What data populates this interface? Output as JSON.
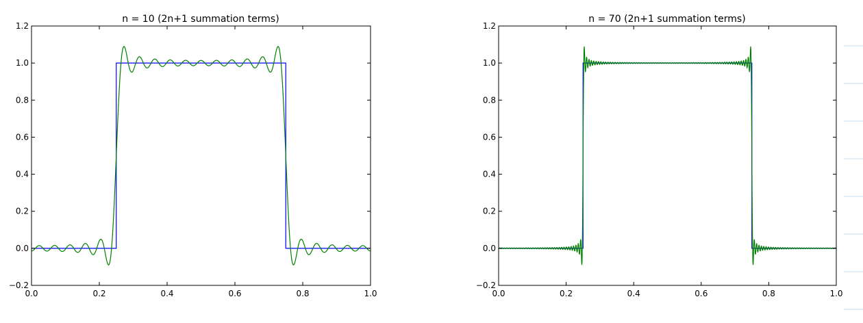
{
  "chart_data": [
    {
      "type": "line",
      "title": "n = 10 (2n+1 summation terms)",
      "xlabel": "",
      "ylabel": "",
      "xlim": [
        0.0,
        1.0
      ],
      "ylim": [
        -0.2,
        1.2
      ],
      "x_ticks": [
        "0.0",
        "0.2",
        "0.4",
        "0.6",
        "0.8",
        "1.0"
      ],
      "y_ticks": [
        "−0.2",
        "0.0",
        "0.2",
        "0.4",
        "0.6",
        "0.8",
        "1.0",
        "1.2"
      ],
      "grid": false,
      "square_wave": {
        "low": 0.0,
        "high": 1.0,
        "rise_x": 0.25,
        "fall_x": 0.75,
        "color": "#0000ff"
      },
      "fourier_series": {
        "n": 10,
        "color": "#008000"
      }
    },
    {
      "type": "line",
      "title": "n = 70 (2n+1 summation terms)",
      "xlabel": "",
      "ylabel": "",
      "xlim": [
        0.0,
        1.0
      ],
      "ylim": [
        -0.2,
        1.2
      ],
      "x_ticks": [
        "0.0",
        "0.2",
        "0.4",
        "0.6",
        "0.8",
        "1.0"
      ],
      "y_ticks": [
        "−0.2",
        "0.0",
        "0.2",
        "0.4",
        "0.6",
        "0.8",
        "1.0",
        "1.2"
      ],
      "grid": false,
      "square_wave": {
        "low": 0.0,
        "high": 1.0,
        "rise_x": 0.25,
        "fall_x": 0.75,
        "color": "#0000ff"
      },
      "fourier_series": {
        "n": 70,
        "color": "#008000"
      }
    }
  ]
}
